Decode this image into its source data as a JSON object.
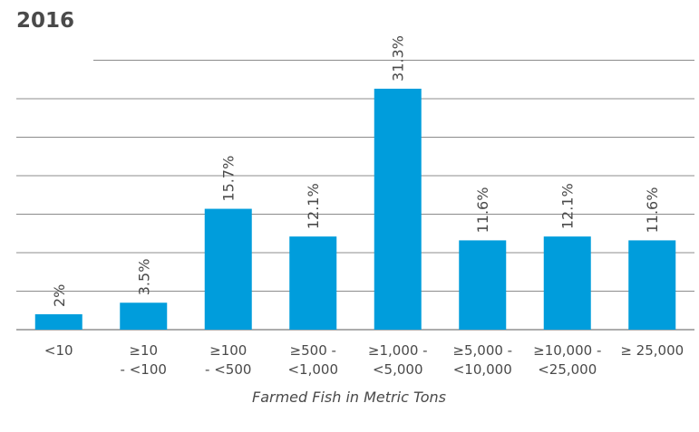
{
  "chart_data": {
    "type": "bar",
    "title": "2016",
    "xlabel": "Farmed Fish in Metric Tons",
    "ylabel": "",
    "ylim": [
      0,
      35
    ],
    "grid": true,
    "categories": [
      [
        "<10"
      ],
      [
        "≥10",
        "- <100"
      ],
      [
        "≥100",
        "- <500"
      ],
      [
        "≥500 -",
        "<1,000"
      ],
      [
        "≥1,000 -",
        "<5,000"
      ],
      [
        "≥5,000 -",
        "<10,000"
      ],
      [
        "≥10,000 -",
        "<25,000"
      ],
      [
        "≥ 25,000"
      ]
    ],
    "values": [
      2,
      3.5,
      15.7,
      12.1,
      31.3,
      11.6,
      12.1,
      11.6
    ],
    "data_labels": [
      "2%",
      "3.5%",
      "15.7%",
      "12.1%",
      "31.3%",
      "11.6%",
      "12.1%",
      "11.6%"
    ],
    "bar_color": "#009ddc"
  }
}
